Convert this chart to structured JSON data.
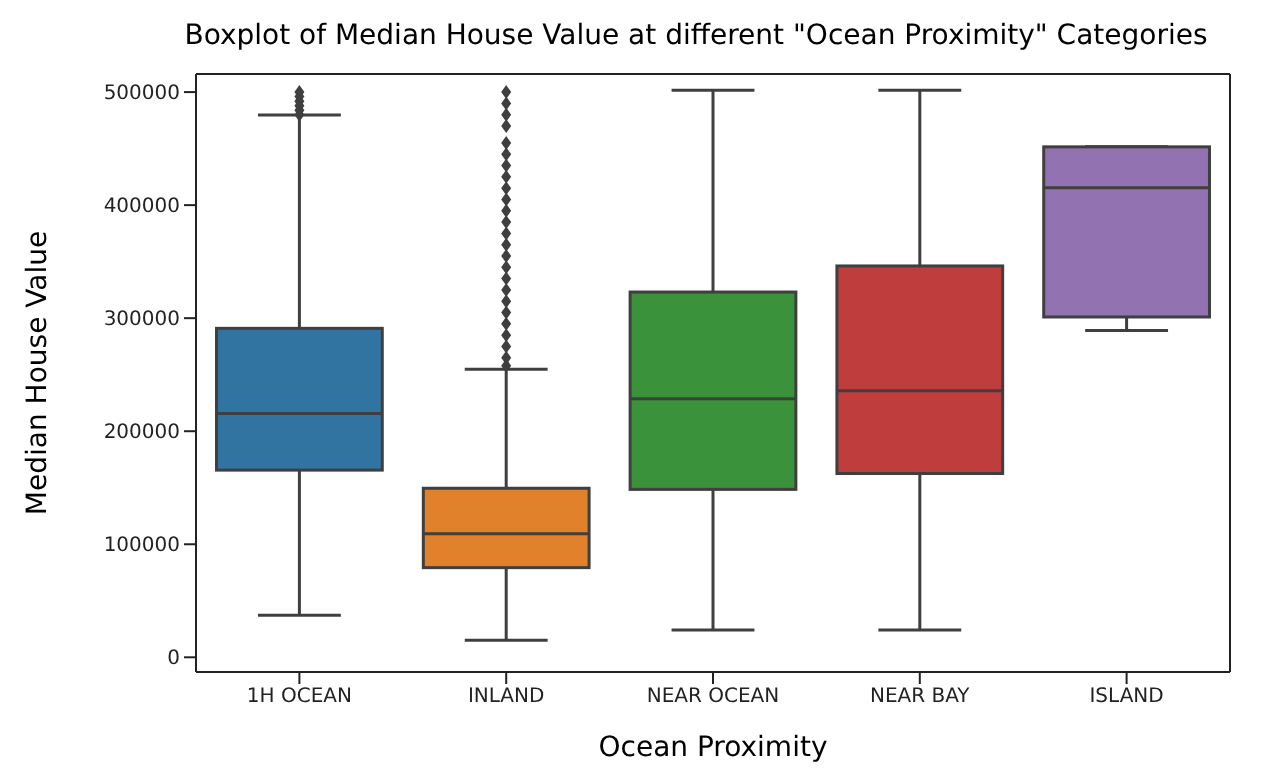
{
  "chart_data": {
    "type": "box",
    "title": "Boxplot of Median House Value at different \"Ocean Proximity\" Categories",
    "xlabel": "Ocean Proximity",
    "ylabel": "Median House Value",
    "categories": [
      "1H OCEAN",
      "INLAND",
      "NEAR OCEAN",
      "NEAR BAY",
      "ISLAND"
    ],
    "colors": [
      "#3274a1",
      "#e1812c",
      "#3a923a",
      "#c03d3e",
      "#9372b2"
    ],
    "marker": "diamond",
    "boxes": [
      {
        "low": 37000,
        "q1": 165000,
        "median": 215000,
        "q3": 290000,
        "high": 478000,
        "outliers": [
          480000,
          484000,
          488000,
          492000,
          496000,
          500000
        ]
      },
      {
        "low": 15000,
        "q1": 79000,
        "median": 109000,
        "q3": 149000,
        "high": 254000,
        "outliers": [
          258000,
          265000,
          275000,
          285000,
          295000,
          305000,
          315000,
          325000,
          335000,
          345000,
          355000,
          365000,
          375000,
          385000,
          395000,
          405000,
          415000,
          425000,
          435000,
          445000,
          455000,
          470000,
          480000,
          490000,
          500000
        ]
      },
      {
        "low": 24000,
        "q1": 148000,
        "median": 228000,
        "q3": 322000,
        "high": 500000
      },
      {
        "low": 24000,
        "q1": 162000,
        "median": 235000,
        "q3": 345000,
        "high": 500000
      },
      {
        "low": 288000,
        "q1": 300000,
        "median": 414000,
        "q3": 450000,
        "high": 450000
      }
    ],
    "ylim": [
      -13000,
      516000
    ],
    "yticks": [
      0,
      100000,
      200000,
      300000,
      400000,
      500000
    ]
  }
}
